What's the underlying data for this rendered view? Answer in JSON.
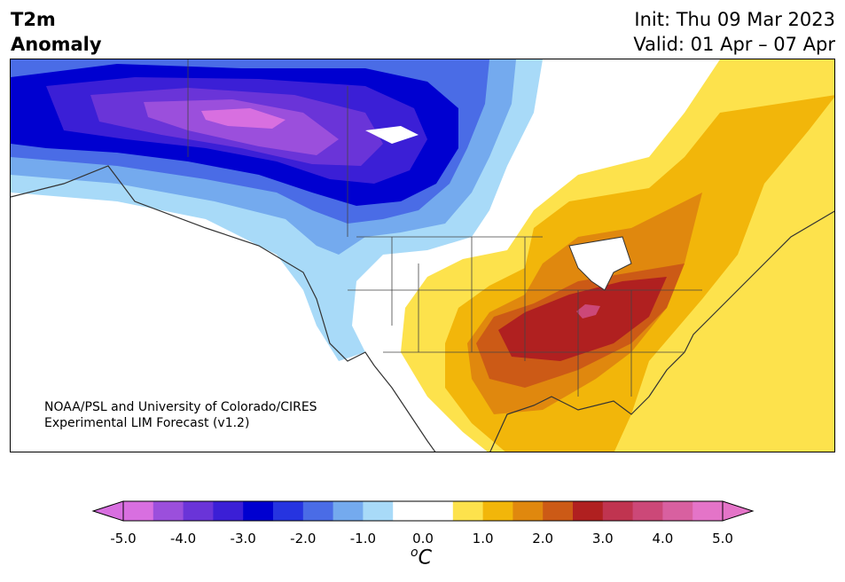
{
  "title": {
    "left_line1": "T2m",
    "left_line2": "Anomaly",
    "right_line1": "Init: Thu 09 Mar 2023",
    "right_line2": "Valid: 01 Apr – 07 Apr"
  },
  "credit": {
    "line1": "NOAA/PSL and University of Colorado/CIRES",
    "line2": "Experimental LIM Forecast (v1.2)"
  },
  "colorbar": {
    "ticks": [
      "-5.0",
      "-4.0",
      "-3.0",
      "-2.0",
      "-1.0",
      "0.0",
      "1.0",
      "2.0",
      "3.0",
      "4.0",
      "5.0"
    ],
    "unit_prefix": "o",
    "unit": "C",
    "colors": [
      "#d86fe0",
      "#9b4fdc",
      "#6a34d8",
      "#3b1fd6",
      "#0000d0",
      "#2634e0",
      "#4a6ce6",
      "#74aaee",
      "#a8daf8",
      "#ffffff",
      "#ffffff",
      "#fde24c",
      "#f2b60a",
      "#e0880e",
      "#cc5a16",
      "#b02020",
      "#c03450",
      "#cc4878",
      "#d860a0",
      "#e474c8"
    ]
  },
  "map_colors": {
    "cold_light": "#a8daf8",
    "cold_mid": "#74aaee",
    "cold_blue": "#4a6ce6",
    "cold_deep": "#0000d0",
    "cold_violet": "#3b1fd6",
    "cold_purple": "#6a34d8",
    "cold_lilac": "#9b4fdc",
    "cold_pink": "#d86fe0",
    "warm_yellow": "#fde24c",
    "warm_gold": "#f2b60a",
    "warm_orange": "#e0880e",
    "warm_rust": "#cc5a16",
    "warm_red": "#b02020",
    "warm_magenta": "#cc4878"
  }
}
